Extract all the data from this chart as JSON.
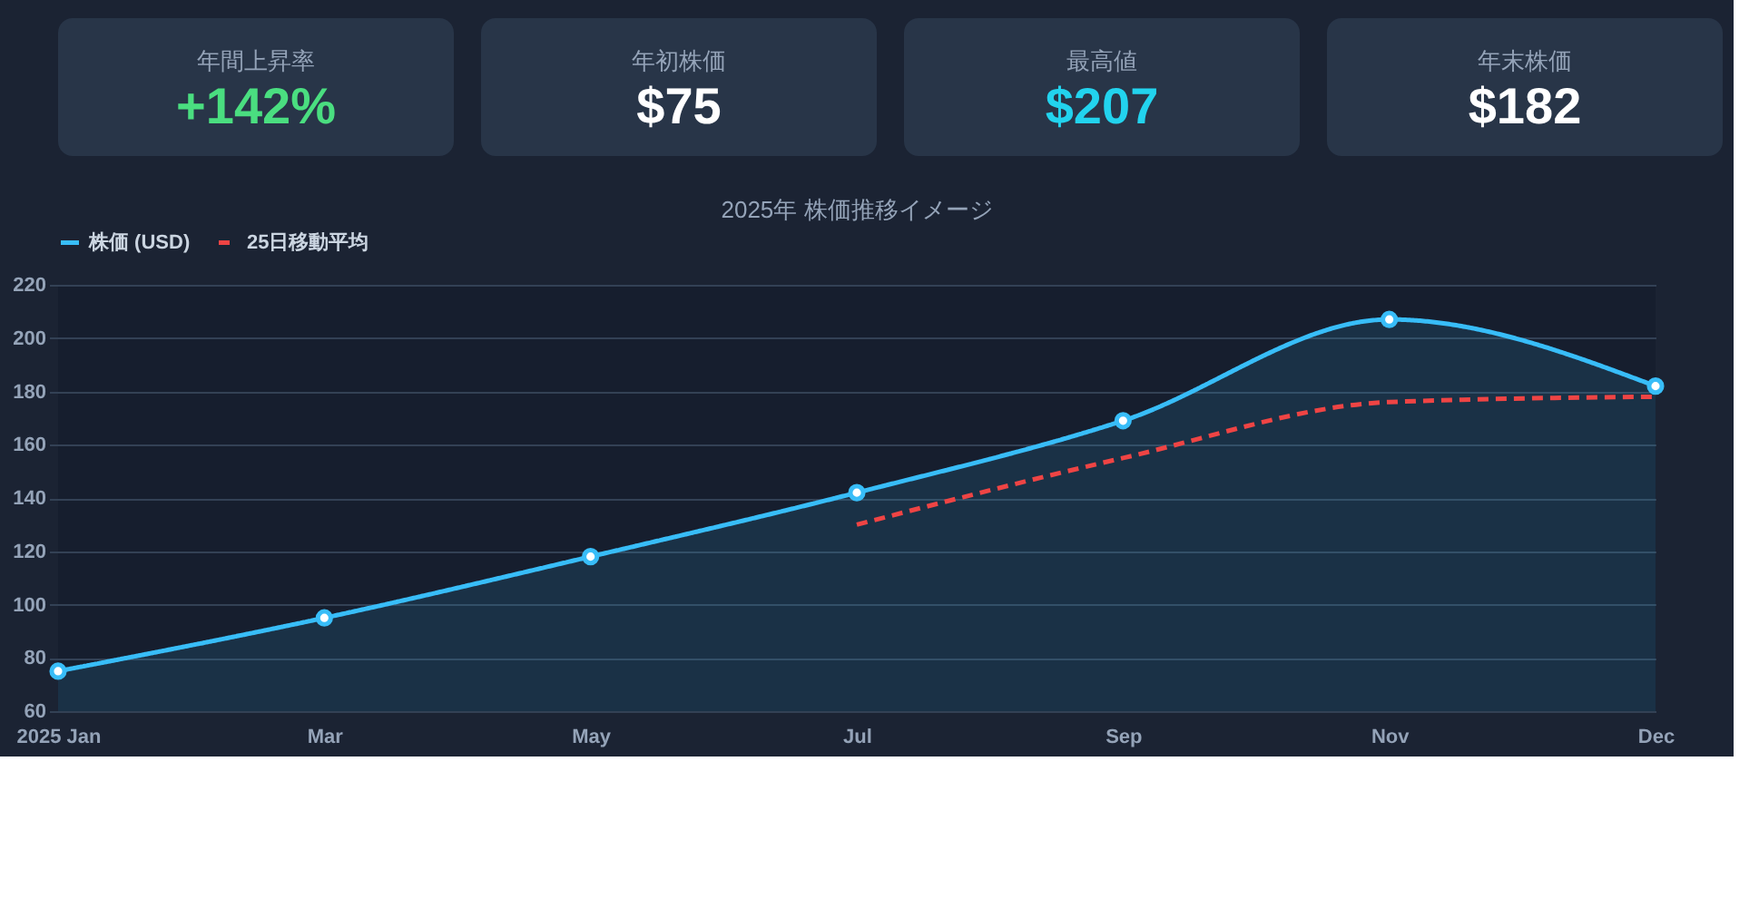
{
  "chart_data": [
    {
      "type": "other",
      "title": "年間上昇率",
      "annotations": [
        "+142%"
      ],
      "color": "#4ade80"
    },
    {
      "type": "other",
      "title": "年初株価",
      "annotations": [
        "$75"
      ],
      "color": "#ffffff"
    },
    {
      "type": "other",
      "title": "最高値",
      "annotations": [
        "$207"
      ],
      "color": "#22d3ee"
    },
    {
      "type": "other",
      "title": "年末株価",
      "annotations": [
        "$182"
      ],
      "color": "#ffffff"
    },
    {
      "type": "line",
      "title": "2025年 株価推移イメージ",
      "categories": [
        "2025 Jan",
        "Mar",
        "May",
        "Jul",
        "Sep",
        "Nov",
        "Dec"
      ],
      "series": [
        {
          "name": "株価 (USD)",
          "type": "area",
          "color": "#38bdf8",
          "marker": "circle",
          "line_style": "solid",
          "values": [
            75,
            95,
            118,
            142,
            169,
            207,
            182
          ]
        },
        {
          "name": "25日移動平均",
          "type": "line",
          "color": "#ef4444",
          "marker": "none",
          "line_style": "dashed",
          "values": [
            null,
            null,
            null,
            130,
            155,
            176,
            178
          ]
        }
      ],
      "ylim": [
        60,
        220
      ],
      "yticks": [
        60,
        80,
        100,
        120,
        140,
        160,
        180,
        200,
        220
      ],
      "grid": "y",
      "legend": "top"
    }
  ]
}
